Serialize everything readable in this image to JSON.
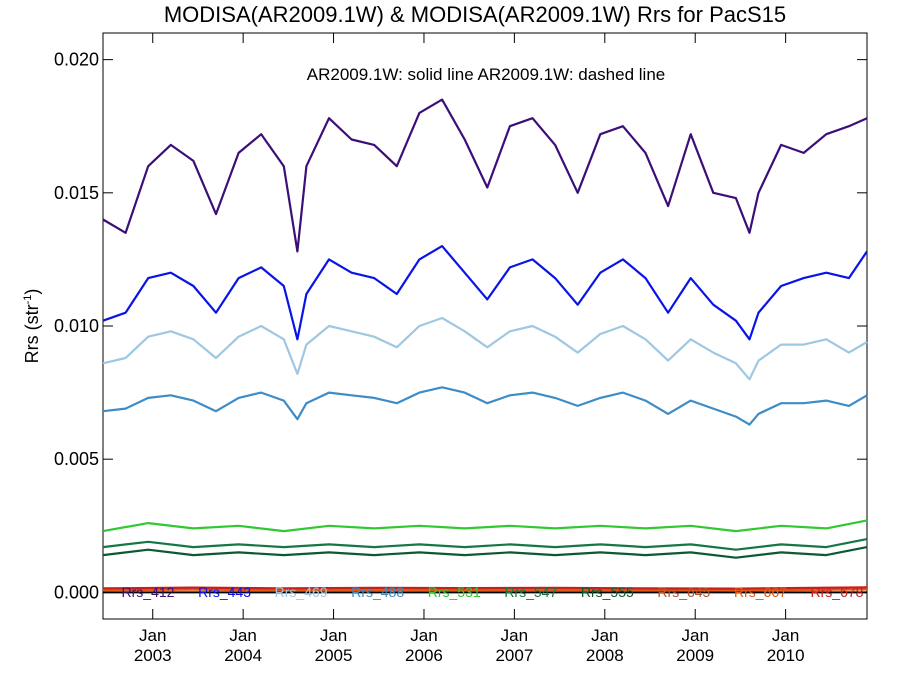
{
  "chart_data": {
    "type": "line",
    "title": "MODISA(AR2009.1W) & MODISA(AR2009.1W)  Rrs for PacS15",
    "ylabel": "Rrs (str",
    "ylabel_sup": "-1",
    "ylabel_close": ")",
    "annotation": "AR2009.1W: solid line   AR2009.1W: dashed line",
    "ylim": [
      -0.001,
      0.021
    ],
    "xlim": [
      2002.45,
      2010.9
    ],
    "yticks": [
      "0.000",
      "0.005",
      "0.010",
      "0.015",
      "0.020"
    ],
    "ytick_values": [
      0.0,
      0.005,
      0.01,
      0.015,
      0.02
    ],
    "xticks": [
      {
        "month": "Jan",
        "year": "2003",
        "x": 2003.0
      },
      {
        "month": "Jan",
        "year": "2004",
        "x": 2004.0
      },
      {
        "month": "Jan",
        "year": "2005",
        "x": 2005.0
      },
      {
        "month": "Jan",
        "year": "2006",
        "x": 2006.0
      },
      {
        "month": "Jan",
        "year": "2007",
        "x": 2007.0
      },
      {
        "month": "Jan",
        "year": "2008",
        "x": 2008.0
      },
      {
        "month": "Jan",
        "year": "2009",
        "x": 2009.0
      },
      {
        "month": "Jan",
        "year": "2010",
        "x": 2010.0
      }
    ],
    "series": [
      {
        "name": "Rrs_412",
        "color": "#3c0f78",
        "x": [
          2002.45,
          2002.7,
          2002.95,
          2003.2,
          2003.45,
          2003.7,
          2003.95,
          2004.2,
          2004.45,
          2004.6,
          2004.7,
          2004.95,
          2005.2,
          2005.45,
          2005.7,
          2005.95,
          2006.2,
          2006.45,
          2006.7,
          2006.95,
          2007.2,
          2007.45,
          2007.7,
          2007.95,
          2008.2,
          2008.45,
          2008.7,
          2008.95,
          2009.2,
          2009.45,
          2009.6,
          2009.7,
          2009.95,
          2010.2,
          2010.45,
          2010.7,
          2010.9
        ],
        "y": [
          0.014,
          0.0135,
          0.016,
          0.0168,
          0.0162,
          0.0142,
          0.0165,
          0.0172,
          0.016,
          0.0128,
          0.016,
          0.0178,
          0.017,
          0.0168,
          0.016,
          0.018,
          0.0185,
          0.017,
          0.0152,
          0.0175,
          0.0178,
          0.0168,
          0.015,
          0.0172,
          0.0175,
          0.0165,
          0.0145,
          0.0172,
          0.015,
          0.0148,
          0.0135,
          0.015,
          0.0168,
          0.0165,
          0.0172,
          0.0175,
          0.0178
        ]
      },
      {
        "name": "Rrs_443",
        "color": "#0a14e6",
        "x": [
          2002.45,
          2002.7,
          2002.95,
          2003.2,
          2003.45,
          2003.7,
          2003.95,
          2004.2,
          2004.45,
          2004.6,
          2004.7,
          2004.95,
          2005.2,
          2005.45,
          2005.7,
          2005.95,
          2006.2,
          2006.45,
          2006.7,
          2006.95,
          2007.2,
          2007.45,
          2007.7,
          2007.95,
          2008.2,
          2008.45,
          2008.7,
          2008.95,
          2009.2,
          2009.45,
          2009.6,
          2009.7,
          2009.95,
          2010.2,
          2010.45,
          2010.7,
          2010.9
        ],
        "y": [
          0.0102,
          0.0105,
          0.0118,
          0.012,
          0.0115,
          0.0105,
          0.0118,
          0.0122,
          0.0115,
          0.0095,
          0.0112,
          0.0125,
          0.012,
          0.0118,
          0.0112,
          0.0125,
          0.013,
          0.012,
          0.011,
          0.0122,
          0.0125,
          0.0118,
          0.0108,
          0.012,
          0.0125,
          0.0118,
          0.0105,
          0.0118,
          0.0108,
          0.0102,
          0.0095,
          0.0105,
          0.0115,
          0.0118,
          0.012,
          0.0118,
          0.0128
        ]
      },
      {
        "name": "Rrs_469",
        "color": "#9ec8e2",
        "x": [
          2002.45,
          2002.7,
          2002.95,
          2003.2,
          2003.45,
          2003.7,
          2003.95,
          2004.2,
          2004.45,
          2004.6,
          2004.7,
          2004.95,
          2005.2,
          2005.45,
          2005.7,
          2005.95,
          2006.2,
          2006.45,
          2006.7,
          2006.95,
          2007.2,
          2007.45,
          2007.7,
          2007.95,
          2008.2,
          2008.45,
          2008.7,
          2008.95,
          2009.2,
          2009.45,
          2009.6,
          2009.7,
          2009.95,
          2010.2,
          2010.45,
          2010.7,
          2010.9
        ],
        "y": [
          0.0086,
          0.0088,
          0.0096,
          0.0098,
          0.0095,
          0.0088,
          0.0096,
          0.01,
          0.0095,
          0.0082,
          0.0093,
          0.01,
          0.0098,
          0.0096,
          0.0092,
          0.01,
          0.0103,
          0.0098,
          0.0092,
          0.0098,
          0.01,
          0.0096,
          0.009,
          0.0097,
          0.01,
          0.0095,
          0.0087,
          0.0095,
          0.009,
          0.0086,
          0.008,
          0.0087,
          0.0093,
          0.0093,
          0.0095,
          0.009,
          0.0094
        ]
      },
      {
        "name": "Rrs_488",
        "color": "#3c8cc8",
        "x": [
          2002.45,
          2002.7,
          2002.95,
          2003.2,
          2003.45,
          2003.7,
          2003.95,
          2004.2,
          2004.45,
          2004.6,
          2004.7,
          2004.95,
          2005.2,
          2005.45,
          2005.7,
          2005.95,
          2006.2,
          2006.45,
          2006.7,
          2006.95,
          2007.2,
          2007.45,
          2007.7,
          2007.95,
          2008.2,
          2008.45,
          2008.7,
          2008.95,
          2009.2,
          2009.45,
          2009.6,
          2009.7,
          2009.95,
          2010.2,
          2010.45,
          2010.7,
          2010.9
        ],
        "y": [
          0.0068,
          0.0069,
          0.0073,
          0.0074,
          0.0072,
          0.0068,
          0.0073,
          0.0075,
          0.0072,
          0.0065,
          0.0071,
          0.0075,
          0.0074,
          0.0073,
          0.0071,
          0.0075,
          0.0077,
          0.0075,
          0.0071,
          0.0074,
          0.0075,
          0.0073,
          0.007,
          0.0073,
          0.0075,
          0.0072,
          0.0067,
          0.0072,
          0.0069,
          0.0066,
          0.0063,
          0.0067,
          0.0071,
          0.0071,
          0.0072,
          0.007,
          0.0074
        ]
      },
      {
        "name": "Rrs_531",
        "color": "#32c832",
        "x": [
          2002.45,
          2002.95,
          2003.45,
          2003.95,
          2004.45,
          2004.95,
          2005.45,
          2005.95,
          2006.45,
          2006.95,
          2007.45,
          2007.95,
          2008.45,
          2008.95,
          2009.45,
          2009.95,
          2010.45,
          2010.9
        ],
        "y": [
          0.0023,
          0.0026,
          0.0024,
          0.0025,
          0.0023,
          0.0025,
          0.0024,
          0.0025,
          0.0024,
          0.0025,
          0.0024,
          0.0025,
          0.0024,
          0.0025,
          0.0023,
          0.0025,
          0.0024,
          0.0027
        ]
      },
      {
        "name": "Rrs_547",
        "color": "#147846",
        "x": [
          2002.45,
          2002.95,
          2003.45,
          2003.95,
          2004.45,
          2004.95,
          2005.45,
          2005.95,
          2006.45,
          2006.95,
          2007.45,
          2007.95,
          2008.45,
          2008.95,
          2009.45,
          2009.95,
          2010.45,
          2010.9
        ],
        "y": [
          0.0017,
          0.0019,
          0.0017,
          0.0018,
          0.0017,
          0.0018,
          0.0017,
          0.0018,
          0.0017,
          0.0018,
          0.0017,
          0.0018,
          0.0017,
          0.0018,
          0.0016,
          0.0018,
          0.0017,
          0.002
        ]
      },
      {
        "name": "Rrs_555",
        "color": "#0a5a32",
        "x": [
          2002.45,
          2002.95,
          2003.45,
          2003.95,
          2004.45,
          2004.95,
          2005.45,
          2005.95,
          2006.45,
          2006.95,
          2007.45,
          2007.95,
          2008.45,
          2008.95,
          2009.45,
          2009.95,
          2010.45,
          2010.9
        ],
        "y": [
          0.0014,
          0.0016,
          0.0014,
          0.0015,
          0.0014,
          0.0015,
          0.0014,
          0.0015,
          0.0014,
          0.0015,
          0.0014,
          0.0015,
          0.0014,
          0.0015,
          0.0013,
          0.0015,
          0.0014,
          0.0017
        ]
      },
      {
        "name": "Rrs_645",
        "color": "#b4502d",
        "x": [
          2002.45,
          2003.45,
          2004.45,
          2005.45,
          2006.45,
          2007.45,
          2008.45,
          2009.45,
          2010.9
        ],
        "y": [
          0.00012,
          0.00015,
          0.00012,
          0.00014,
          0.00013,
          0.00014,
          0.00012,
          0.00011,
          0.00016
        ]
      },
      {
        "name": "Rrs_667",
        "color": "#dc5a14",
        "x": [
          2002.45,
          2003.45,
          2004.45,
          2005.45,
          2006.45,
          2007.45,
          2008.45,
          2009.45,
          2010.9
        ],
        "y": [
          8e-05,
          0.0001,
          8e-05,
          9e-05,
          8e-05,
          9e-05,
          8e-05,
          7e-05,
          0.00011
        ]
      },
      {
        "name": "Rrs_678",
        "color": "#c81e1e",
        "x": [
          2002.45,
          2003.45,
          2004.45,
          2005.45,
          2006.45,
          2007.45,
          2008.45,
          2009.45,
          2010.9
        ],
        "y": [
          0.00015,
          0.00018,
          0.00015,
          0.00017,
          0.00016,
          0.00017,
          0.00015,
          0.00014,
          0.00019
        ]
      }
    ],
    "zero_line": {
      "y": 0.0,
      "color": "#000000"
    }
  }
}
